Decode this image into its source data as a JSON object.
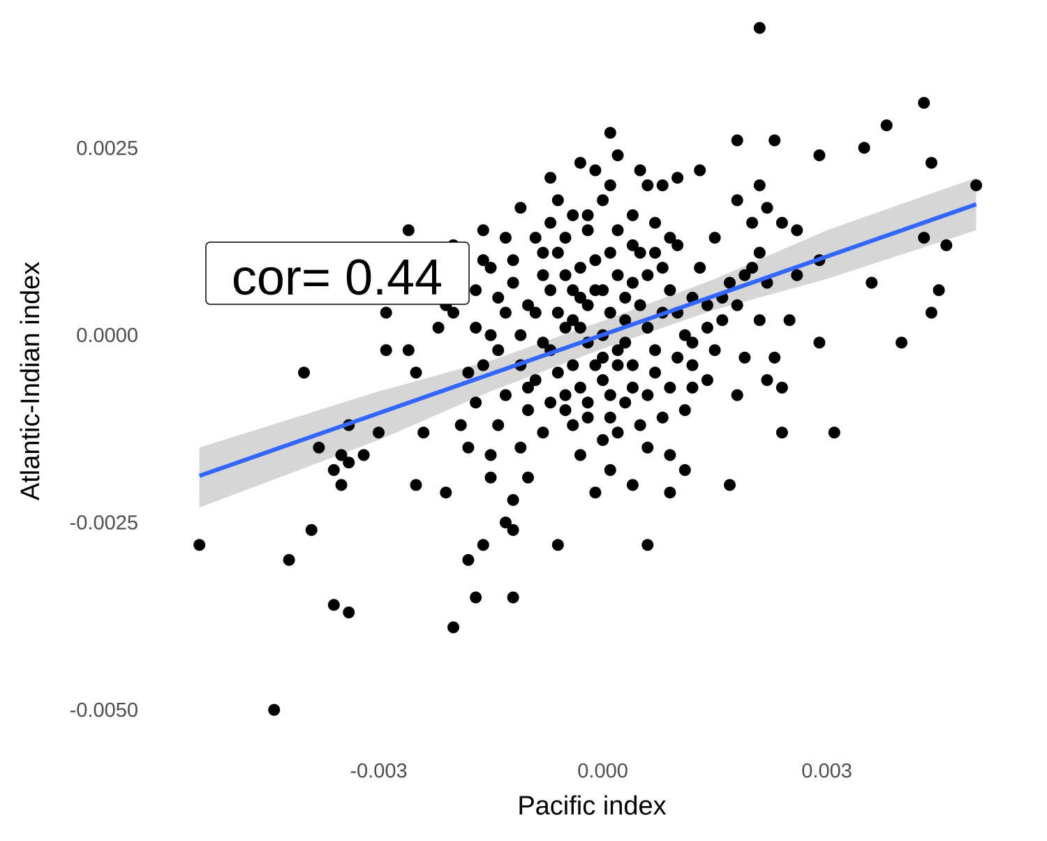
{
  "chart_data": {
    "type": "scatter",
    "xlabel": "Pacific index",
    "ylabel": "Atlantic-Indian index",
    "xlim": [
      -0.0055,
      0.0052
    ],
    "ylim": [
      -0.0054,
      0.0041
    ],
    "x_ticks": [
      {
        "value": -0.003,
        "label": "-0.003"
      },
      {
        "value": 0.0,
        "label": "0.000"
      },
      {
        "value": 0.003,
        "label": "0.003"
      }
    ],
    "y_ticks": [
      {
        "value": 0.0025,
        "label": "0.0025"
      },
      {
        "value": 0.0,
        "label": "0.0000"
      },
      {
        "value": -0.0025,
        "label": "-0.0025"
      },
      {
        "value": -0.005,
        "label": "-0.0050"
      }
    ],
    "grid": false,
    "colors": {
      "points": "#000000",
      "fit_line": "#3366ff",
      "ribbon": "#cccccc"
    },
    "annotation": {
      "text": "cor= 0.44",
      "x": -0.0025,
      "y": 0.001
    },
    "fit": {
      "method": "linear",
      "x_range": [
        -0.0054,
        0.005
      ],
      "slope": 0.3485,
      "intercept": 4e-06,
      "band": [
        {
          "x": -0.0054,
          "lo": -0.0023,
          "hi": -0.0015
        },
        {
          "x": -0.003,
          "lo": -0.0014,
          "hi": -0.00075
        },
        {
          "x": -0.0015,
          "lo": -0.00075,
          "hi": -0.00034
        },
        {
          "x": 0.0,
          "lo": -0.00018,
          "hi": 0.00019
        },
        {
          "x": 0.0015,
          "lo": 0.00034,
          "hi": 0.00075
        },
        {
          "x": 0.003,
          "lo": 0.00075,
          "hi": 0.0014
        },
        {
          "x": 0.005,
          "lo": 0.0014,
          "hi": 0.0021
        }
      ]
    },
    "points": [
      [
        0.0021,
        0.0041
      ],
      [
        0.0043,
        0.0031
      ],
      [
        0.0038,
        0.0028
      ],
      [
        0.005,
        0.002
      ],
      [
        0.0035,
        0.0025
      ],
      [
        0.0044,
        0.0023
      ],
      [
        0.0029,
        0.0024
      ],
      [
        0.0023,
        0.0026
      ],
      [
        0.0018,
        0.0026
      ],
      [
        0.0021,
        0.002
      ],
      [
        0.0043,
        0.0013
      ],
      [
        0.0046,
        0.0012
      ],
      [
        0.0036,
        0.0007
      ],
      [
        0.0045,
        0.0006
      ],
      [
        0.0044,
        0.0003
      ],
      [
        0.004,
        -0.0001
      ],
      [
        0.0029,
        0.001
      ],
      [
        0.0026,
        0.0008
      ],
      [
        0.0029,
        -0.0001
      ],
      [
        0.0031,
        -0.0013
      ],
      [
        0.0025,
        0.0002
      ],
      [
        0.0024,
        -0.0013
      ],
      [
        0.0024,
        -0.0007
      ],
      [
        0.0023,
        -0.0003
      ],
      [
        0.0022,
        -0.0006
      ],
      [
        0.0021,
        0.0002
      ],
      [
        0.0022,
        0.0007
      ],
      [
        0.0022,
        0.0017
      ],
      [
        0.0024,
        0.0015
      ],
      [
        0.0026,
        0.0014
      ],
      [
        0.002,
        0.0015
      ],
      [
        0.0018,
        0.0018
      ],
      [
        0.0019,
        0.0008
      ],
      [
        0.0017,
        -0.002
      ],
      [
        0.0018,
        -0.0008
      ],
      [
        0.0019,
        -0.0003
      ],
      [
        0.0013,
        0.0022
      ],
      [
        0.0015,
        0.0013
      ],
      [
        0.0016,
        0.0005
      ],
      [
        0.0014,
        0.0001
      ],
      [
        0.0012,
        -0.0001
      ],
      [
        0.0012,
        -0.0007
      ],
      [
        0.0011,
        -0.001
      ],
      [
        0.0011,
        -0.0018
      ],
      [
        0.0009,
        -0.0021
      ],
      [
        0.0009,
        -0.0016
      ],
      [
        0.001,
        0.0021
      ],
      [
        0.0008,
        0.002
      ],
      [
        0.001,
        0.0012
      ],
      [
        0.0007,
        0.0015
      ],
      [
        0.0006,
        0.002
      ],
      [
        0.0005,
        0.0022
      ],
      [
        0.0004,
        0.0016
      ],
      [
        0.0005,
        0.0011
      ],
      [
        0.0004,
        0.0007
      ],
      [
        0.0003,
        0.0002
      ],
      [
        0.0002,
        -0.0004
      ],
      [
        0.0004,
        -0.0007
      ],
      [
        0.0005,
        -0.0012
      ],
      [
        0.0006,
        -0.0015
      ],
      [
        0.0004,
        -0.002
      ],
      [
        0.0006,
        -0.0028
      ],
      [
        0.0002,
        0.0024
      ],
      [
        0.0001,
        0.0027
      ],
      [
        0.0001,
        0.002
      ],
      [
        0.0,
        0.0018
      ],
      [
        -0.0001,
        0.0022
      ],
      [
        -0.0003,
        0.0023
      ],
      [
        -0.0002,
        0.0014
      ],
      [
        -0.0001,
        0.001
      ],
      [
        0.0,
        0.0006
      ],
      [
        -0.0002,
        0.0004
      ],
      [
        0.0,
        0.0
      ],
      [
        -0.0001,
        -0.0004
      ],
      [
        0.0001,
        -0.0008
      ],
      [
        -0.0002,
        -0.0011
      ],
      [
        0.0,
        -0.0014
      ],
      [
        0.0001,
        -0.0018
      ],
      [
        -0.0001,
        -0.0021
      ],
      [
        -0.0003,
        -0.0016
      ],
      [
        -0.0004,
        -0.0012
      ],
      [
        -0.0005,
        -0.0008
      ],
      [
        -0.0004,
        -0.0004
      ],
      [
        -0.0005,
        0.0001
      ],
      [
        -0.0004,
        0.0006
      ],
      [
        -0.0006,
        0.0011
      ],
      [
        -0.0007,
        0.0015
      ],
      [
        -0.0006,
        0.0018
      ],
      [
        -0.0007,
        0.0021
      ],
      [
        -0.0009,
        0.0013
      ],
      [
        -0.0008,
        0.0008
      ],
      [
        -0.0009,
        0.0003
      ],
      [
        -0.0008,
        -0.0001
      ],
      [
        -0.0009,
        -0.0006
      ],
      [
        -0.001,
        -0.001
      ],
      [
        -0.0008,
        -0.0013
      ],
      [
        -0.001,
        -0.0019
      ],
      [
        -0.0011,
        -0.0015
      ],
      [
        -0.0006,
        -0.0028
      ],
      [
        -0.0012,
        -0.0022
      ],
      [
        -0.0012,
        -0.0026
      ],
      [
        -0.0012,
        -0.0035
      ],
      [
        -0.0013,
        -0.0025
      ],
      [
        -0.0011,
        0.0017
      ],
      [
        -0.0013,
        0.0013
      ],
      [
        -0.0012,
        0.0007
      ],
      [
        -0.0013,
        0.0003
      ],
      [
        -0.0014,
        -0.0002
      ],
      [
        -0.0013,
        -0.0008
      ],
      [
        -0.0014,
        -0.0012
      ],
      [
        -0.0015,
        -0.0016
      ],
      [
        -0.0015,
        -0.0019
      ],
      [
        -0.0016,
        -0.0028
      ],
      [
        -0.0017,
        -0.0035
      ],
      [
        -0.0018,
        -0.003
      ],
      [
        -0.0016,
        0.0014
      ],
      [
        -0.0016,
        0.001
      ],
      [
        -0.0017,
        0.0006
      ],
      [
        -0.0017,
        0.0001
      ],
      [
        -0.0018,
        -0.0005
      ],
      [
        -0.0018,
        -0.0015
      ],
      [
        -0.0019,
        -0.0012
      ],
      [
        -0.002,
        -0.0039
      ],
      [
        -0.0021,
        -0.0021
      ],
      [
        -0.002,
        0.0003
      ],
      [
        -0.0019,
        0.0008
      ],
      [
        -0.002,
        0.0012
      ],
      [
        -0.0022,
        0.0001
      ],
      [
        -0.0024,
        -0.0013
      ],
      [
        -0.0025,
        -0.002
      ],
      [
        -0.0025,
        -0.0005
      ],
      [
        -0.0026,
        -0.0002
      ],
      [
        -0.0026,
        0.0014
      ],
      [
        -0.0029,
        0.0003
      ],
      [
        -0.0029,
        -0.0002
      ],
      [
        -0.003,
        -0.0013
      ],
      [
        -0.0032,
        -0.0016
      ],
      [
        -0.0034,
        -0.0012
      ],
      [
        -0.0034,
        -0.0017
      ],
      [
        -0.0034,
        -0.0037
      ],
      [
        -0.0035,
        -0.0016
      ],
      [
        -0.0036,
        -0.0036
      ],
      [
        -0.0035,
        -0.002
      ],
      [
        -0.0036,
        -0.0018
      ],
      [
        -0.0038,
        -0.0015
      ],
      [
        -0.0039,
        -0.0026
      ],
      [
        -0.004,
        -0.0005
      ],
      [
        -0.0042,
        -0.003
      ],
      [
        -0.0044,
        -0.005
      ],
      [
        -0.0054,
        -0.0028
      ],
      [
        0.0001,
        0.0011
      ],
      [
        0.0002,
        0.0008
      ],
      [
        0.0003,
        0.0005
      ],
      [
        0.0001,
        0.0003
      ],
      [
        0.0003,
        -0.0001
      ],
      [
        0.0002,
        -0.0002
      ],
      [
        0.0,
        -0.0003
      ],
      [
        -0.0002,
        -0.0001
      ],
      [
        -0.0003,
        0.0001
      ],
      [
        -0.0003,
        0.0005
      ],
      [
        -0.0001,
        0.0006
      ],
      [
        0.0005,
        0.0004
      ],
      [
        0.0006,
        0.0001
      ],
      [
        0.0007,
        -0.0002
      ],
      [
        0.0007,
        -0.0005
      ],
      [
        0.0008,
        0.0003
      ],
      [
        0.0008,
        0.0009
      ],
      [
        0.0009,
        0.0006
      ],
      [
        0.001,
        0.0003
      ],
      [
        0.001,
        -0.0003
      ],
      [
        0.0011,
        0.0
      ],
      [
        0.0012,
        0.0005
      ],
      [
        0.0013,
        0.0009
      ],
      [
        0.0014,
        0.0004
      ],
      [
        0.0015,
        -0.0002
      ],
      [
        0.0016,
        0.0002
      ],
      [
        0.0017,
        0.0007
      ],
      [
        0.0018,
        0.0004
      ],
      [
        0.002,
        0.0009
      ],
      [
        0.0021,
        0.0011
      ],
      [
        -0.0006,
        0.0003
      ],
      [
        -0.0007,
        -0.0002
      ],
      [
        -0.0006,
        -0.0005
      ],
      [
        -0.0007,
        -0.0009
      ],
      [
        -0.0005,
        -0.001
      ],
      [
        -0.0003,
        -0.0007
      ],
      [
        -0.0002,
        -0.0009
      ],
      [
        -0.0004,
        0.0002
      ],
      [
        -0.0005,
        0.0008
      ],
      [
        -0.0003,
        0.0009
      ],
      [
        -0.001,
        0.0004
      ],
      [
        -0.0011,
        0.0
      ],
      [
        -0.0011,
        -0.0004
      ],
      [
        -0.001,
        -0.0007
      ],
      [
        -0.0012,
        0.001
      ],
      [
        -0.0014,
        0.0005
      ],
      [
        -0.0015,
        0.0
      ],
      [
        -0.0016,
        -0.0004
      ],
      [
        -0.0017,
        -0.0009
      ],
      [
        -0.0015,
        0.0009
      ],
      [
        0.0,
        -0.0006
      ],
      [
        0.0001,
        -0.0011
      ],
      [
        0.0002,
        -0.0013
      ],
      [
        0.0003,
        -0.0009
      ],
      [
        0.0004,
        -0.0004
      ],
      [
        0.0006,
        -0.0008
      ],
      [
        0.0008,
        -0.0011
      ],
      [
        0.0009,
        -0.0007
      ],
      [
        0.0012,
        -0.0004
      ],
      [
        0.0014,
        -0.0006
      ],
      [
        -0.0008,
        0.0011
      ],
      [
        -0.0007,
        0.0006
      ],
      [
        -0.0005,
        0.0013
      ],
      [
        -0.0004,
        0.0016
      ],
      [
        -0.0002,
        0.0016
      ],
      [
        0.0002,
        0.0014
      ],
      [
        0.0004,
        0.0012
      ],
      [
        0.0006,
        0.0008
      ],
      [
        0.0007,
        0.0011
      ],
      [
        0.0009,
        0.0013
      ],
      [
        -0.0023,
        0.001
      ],
      [
        -0.0021,
        0.0004
      ],
      [
        -0.0022,
        0.0007
      ]
    ]
  }
}
